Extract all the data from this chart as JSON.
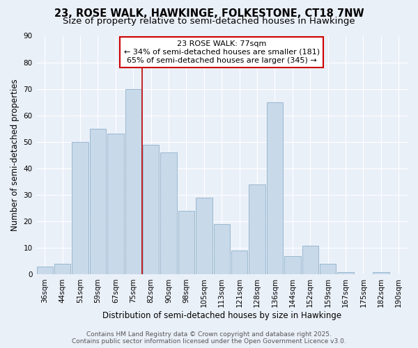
{
  "title": "23, ROSE WALK, HAWKINGE, FOLKESTONE, CT18 7NW",
  "subtitle": "Size of property relative to semi-detached houses in Hawkinge",
  "xlabel": "Distribution of semi-detached houses by size in Hawkinge",
  "ylabel": "Number of semi-detached properties",
  "categories": [
    "36sqm",
    "44sqm",
    "51sqm",
    "59sqm",
    "67sqm",
    "75sqm",
    "82sqm",
    "90sqm",
    "98sqm",
    "105sqm",
    "113sqm",
    "121sqm",
    "128sqm",
    "136sqm",
    "144sqm",
    "152sqm",
    "159sqm",
    "167sqm",
    "175sqm",
    "182sqm",
    "190sqm"
  ],
  "values": [
    3,
    4,
    50,
    55,
    53,
    70,
    49,
    46,
    24,
    29,
    19,
    9,
    34,
    65,
    7,
    11,
    4,
    1,
    0,
    1,
    0
  ],
  "bar_color": "#c8d9ea",
  "bar_edge_color": "#9ab8d0",
  "vline_x_idx": 6,
  "vline_color": "#bb0000",
  "ylim": [
    0,
    90
  ],
  "yticks": [
    0,
    10,
    20,
    30,
    40,
    50,
    60,
    70,
    80,
    90
  ],
  "background_color": "#eaf0f8",
  "annotation_title": "23 ROSE WALK: 77sqm",
  "annotation_line1": "← 34% of semi-detached houses are smaller (181)",
  "annotation_line2": "65% of semi-detached houses are larger (345) →",
  "footer_line1": "Contains HM Land Registry data © Crown copyright and database right 2025.",
  "footer_line2": "Contains public sector information licensed under the Open Government Licence v3.0.",
  "title_fontsize": 10.5,
  "subtitle_fontsize": 9.5,
  "axis_label_fontsize": 8.5,
  "tick_fontsize": 7.5,
  "annotation_fontsize": 8,
  "footer_fontsize": 6.5
}
